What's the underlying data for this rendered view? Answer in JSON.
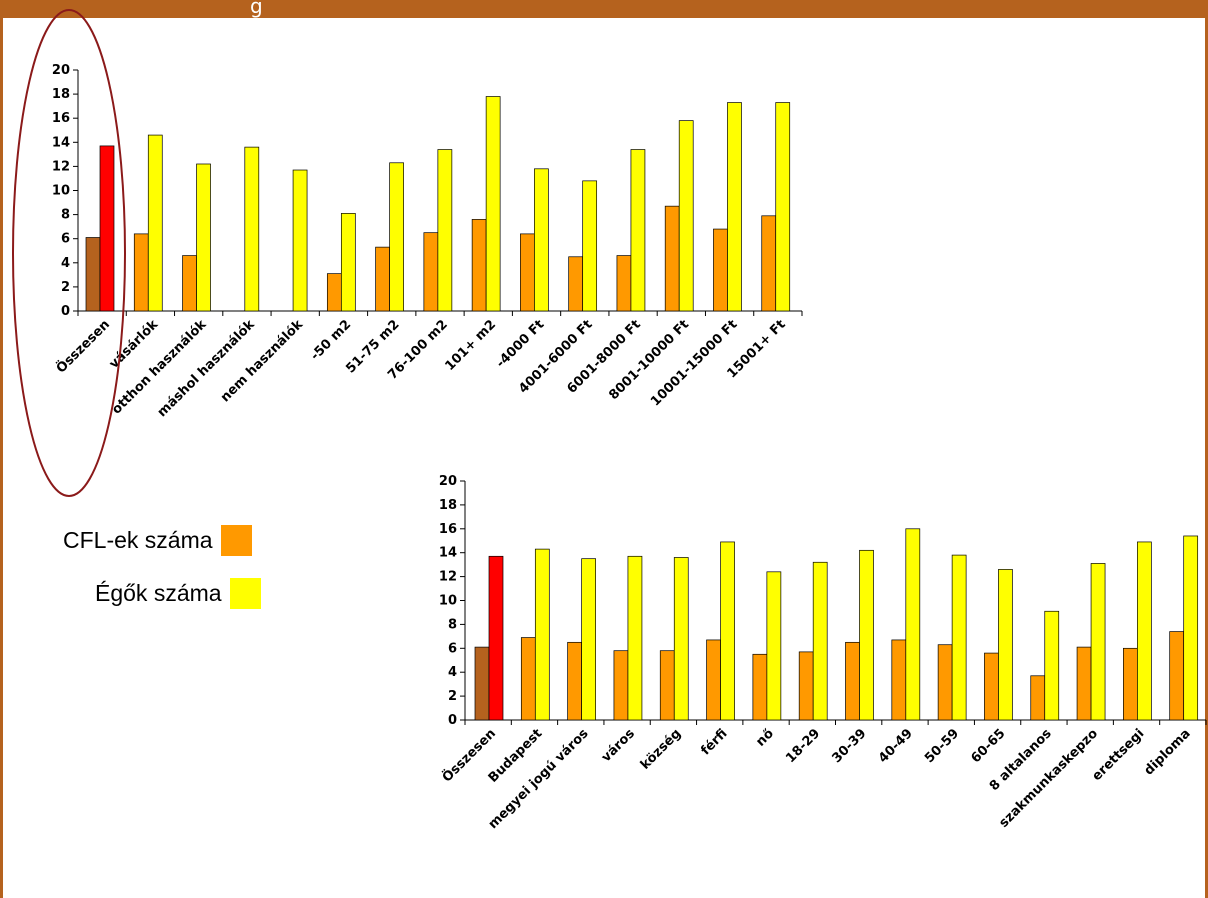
{
  "header": {
    "title": "g"
  },
  "colors": {
    "frame": "#b5621e",
    "cfl": "#ff9900",
    "bulbs": "#ffff00",
    "total_cfl": "#b5621e",
    "total_bulbs": "#ff0000",
    "ellipse": "#8b1a1a"
  },
  "legend": {
    "cfl_label": "CFL-ek száma",
    "bulbs_label": "Égők száma"
  },
  "chart_data": [
    {
      "type": "bar",
      "ylim": [
        0,
        20
      ],
      "yticks": [
        "0",
        "2",
        "4",
        "6",
        "8",
        "10",
        "12",
        "14",
        "16",
        "18",
        "20"
      ],
      "grid": false,
      "legend_placement": "left",
      "categories": [
        "Összesen",
        "vásárlók",
        "otthon használók",
        "máshol használók",
        "nem használók",
        "-50 m2",
        "51-75 m2",
        "76-100 m2",
        "101+ m2",
        "-4000 Ft",
        "4001-6000 Ft",
        "6001-8000 Ft",
        "8001-10000 Ft",
        "10001-15000 Ft",
        "15001+ Ft"
      ],
      "series": [
        {
          "name": "CFL-ek száma",
          "values": [
            6.1,
            6.4,
            4.6,
            0,
            0,
            3.1,
            5.3,
            6.5,
            7.6,
            6.4,
            4.5,
            4.6,
            8.7,
            6.8,
            7.9
          ]
        },
        {
          "name": "Égők száma",
          "values": [
            13.7,
            14.6,
            12.2,
            13.6,
            11.7,
            8.1,
            12.3,
            13.4,
            17.8,
            11.8,
            10.8,
            13.4,
            15.8,
            17.3,
            17.3
          ]
        }
      ],
      "highlight": "Összesen"
    },
    {
      "type": "bar",
      "ylim": [
        0,
        20
      ],
      "yticks": [
        "0",
        "2",
        "4",
        "6",
        "8",
        "10",
        "12",
        "14",
        "16",
        "18",
        "20"
      ],
      "grid": false,
      "legend_placement": "left",
      "categories": [
        "Összesen",
        "Budapest",
        "megyei jogú város",
        "város",
        "község",
        "férfi",
        "nő",
        "18-29",
        "30-39",
        "40-49",
        "50-59",
        "60-65",
        "8 altalanos",
        "szakmunkaskepzo",
        "erettsegi",
        "diploma"
      ],
      "series": [
        {
          "name": "CFL-ek száma",
          "values": [
            6.1,
            6.9,
            6.5,
            5.8,
            5.8,
            6.7,
            5.5,
            5.7,
            6.5,
            6.7,
            6.3,
            5.6,
            3.7,
            6.1,
            6.0,
            7.4
          ]
        },
        {
          "name": "Égők száma",
          "values": [
            13.7,
            14.3,
            13.5,
            13.7,
            13.6,
            14.9,
            12.4,
            13.2,
            14.2,
            16.0,
            13.8,
            12.6,
            9.1,
            13.1,
            14.9,
            15.4
          ]
        }
      ],
      "highlight": "Összesen"
    }
  ]
}
